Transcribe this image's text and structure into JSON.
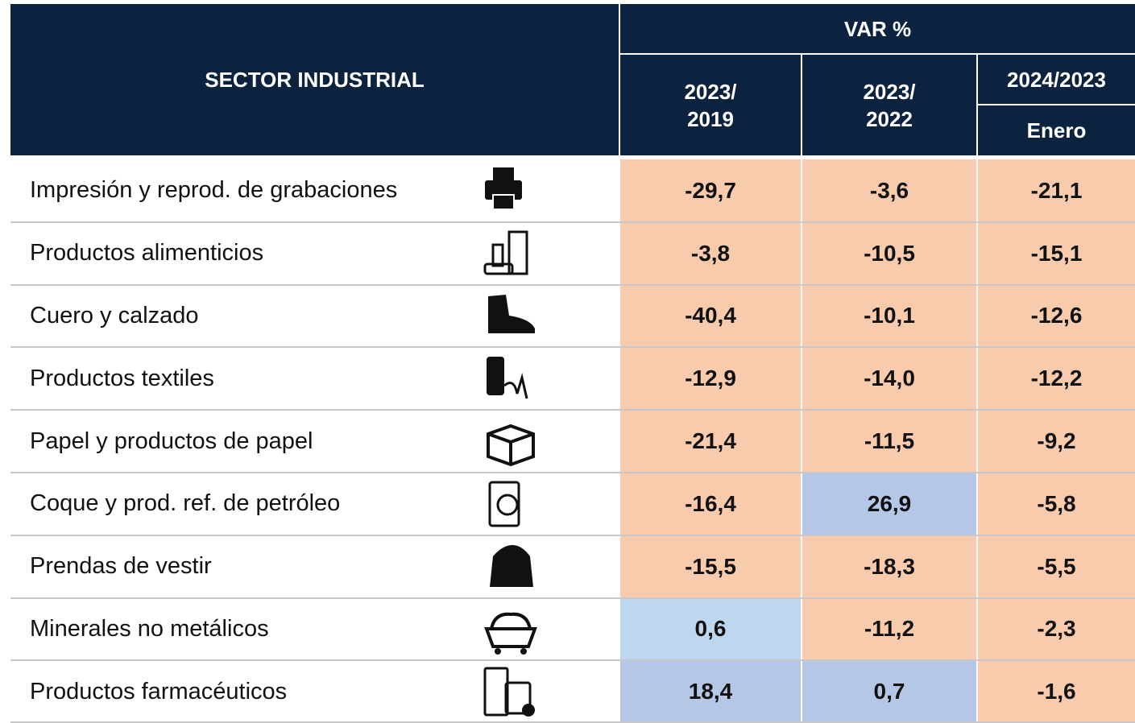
{
  "header": {
    "sector": "SECTOR INDUSTRIAL",
    "var": "VAR %",
    "col1": [
      "2023/",
      "2019"
    ],
    "col2": [
      "2023/",
      "2022"
    ],
    "col3": "2024/2023",
    "col3_sub": "Enero"
  },
  "rows": [
    {
      "label": "Impresión y reprod. de grabaciones",
      "values": [
        "-29,7",
        "-3,6",
        "-21,1"
      ],
      "fills": [
        "#f8cbad",
        "#f8cbad",
        "#f8cbad"
      ]
    },
    {
      "label": "Productos alimenticios",
      "values": [
        "-3,8",
        "-10,5",
        "-15,1"
      ],
      "fills": [
        "#f8cbad",
        "#f8cbad",
        "#f8cbad"
      ]
    },
    {
      "label": "Cuero y calzado",
      "values": [
        "-40,4",
        "-10,1",
        "-12,6"
      ],
      "fills": [
        "#f8cbad",
        "#f8cbad",
        "#f8cbad"
      ]
    },
    {
      "label": "Productos textiles",
      "values": [
        "-12,9",
        "-14,0",
        "-12,2"
      ],
      "fills": [
        "#f8cbad",
        "#f8cbad",
        "#f8cbad"
      ]
    },
    {
      "label": "Papel y productos de papel",
      "values": [
        "-21,4",
        "-11,5",
        "-9,2"
      ],
      "fills": [
        "#f8cbad",
        "#f8cbad",
        "#f8cbad"
      ]
    },
    {
      "label": "Coque y prod. ref. de petróleo",
      "values": [
        "-16,4",
        "26,9",
        "-5,8"
      ],
      "fills": [
        "#f8cbad",
        "#b4c7e7",
        "#f8cbad"
      ]
    },
    {
      "label": "Prendas de vestir",
      "values": [
        "-15,5",
        "-18,3",
        "-5,5"
      ],
      "fills": [
        "#f8cbad",
        "#f8cbad",
        "#f8cbad"
      ]
    },
    {
      "label": "Minerales no metálicos",
      "values": [
        "0,6",
        "-11,2",
        "-2,3"
      ],
      "fills": [
        "#bdd7ee",
        "#f8cbad",
        "#f8cbad"
      ]
    },
    {
      "label": "Productos farmacéuticos",
      "values": [
        "18,4",
        "0,7",
        "-1,6"
      ],
      "fills": [
        "#b4c7e7",
        "#b4c7e7",
        "#f8cbad"
      ]
    }
  ]
}
